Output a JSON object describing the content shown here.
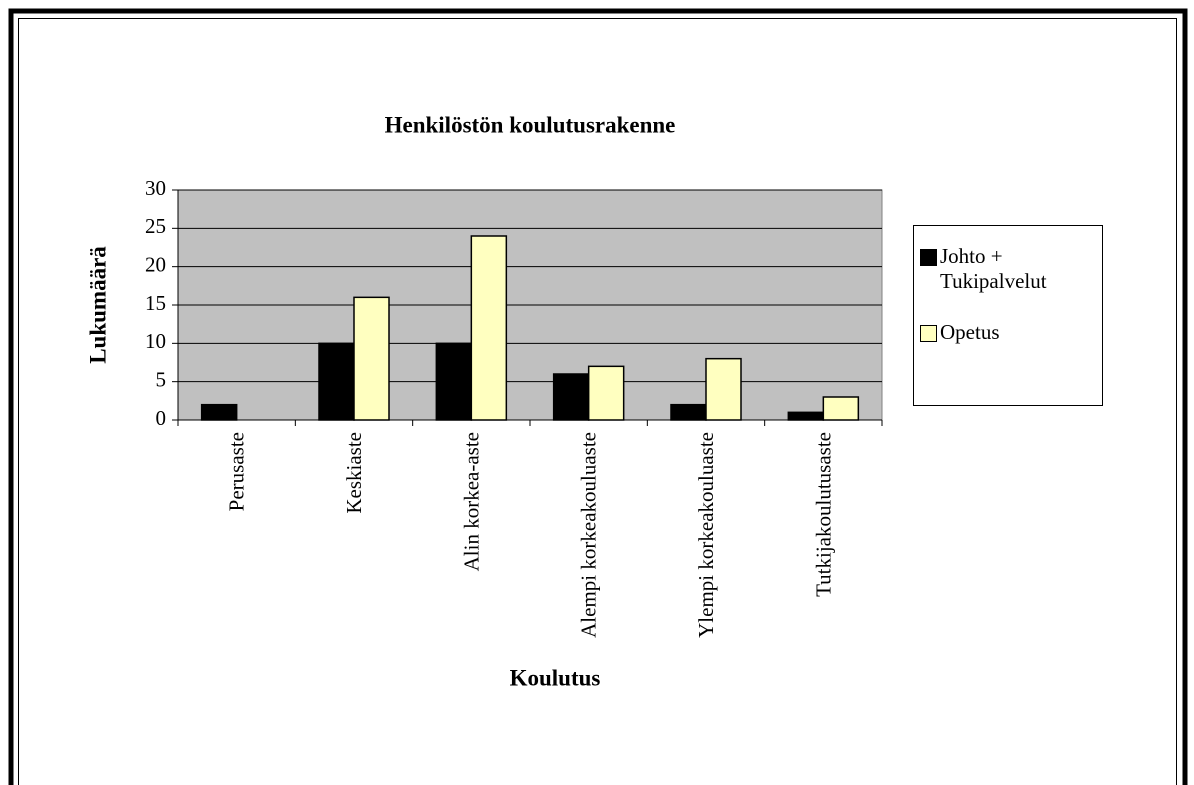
{
  "chart_data": {
    "type": "bar",
    "title": "Henkilöstön koulutusrakenne",
    "x_label": "Koulutus",
    "y_label": "Lukumäärä",
    "categories": [
      "Perusaste",
      "Keskiaste",
      "Alin korkea-aste",
      "Alempi korkeakouluaste",
      "Ylempi korkeakouluaste",
      "Tutkijakoulutusaste"
    ],
    "series": [
      {
        "name": "Johto + Tukipalvelut",
        "color": "#000000",
        "values": [
          2,
          10,
          10,
          6,
          2,
          1
        ]
      },
      {
        "name": "Opetus",
        "color": "#ffffc0",
        "values": [
          0,
          16,
          24,
          7,
          8,
          3
        ]
      }
    ],
    "ylim": [
      0,
      30
    ],
    "yticks": [
      0,
      5,
      10,
      15,
      20,
      25,
      30
    ],
    "grid": true,
    "legend": "right"
  }
}
